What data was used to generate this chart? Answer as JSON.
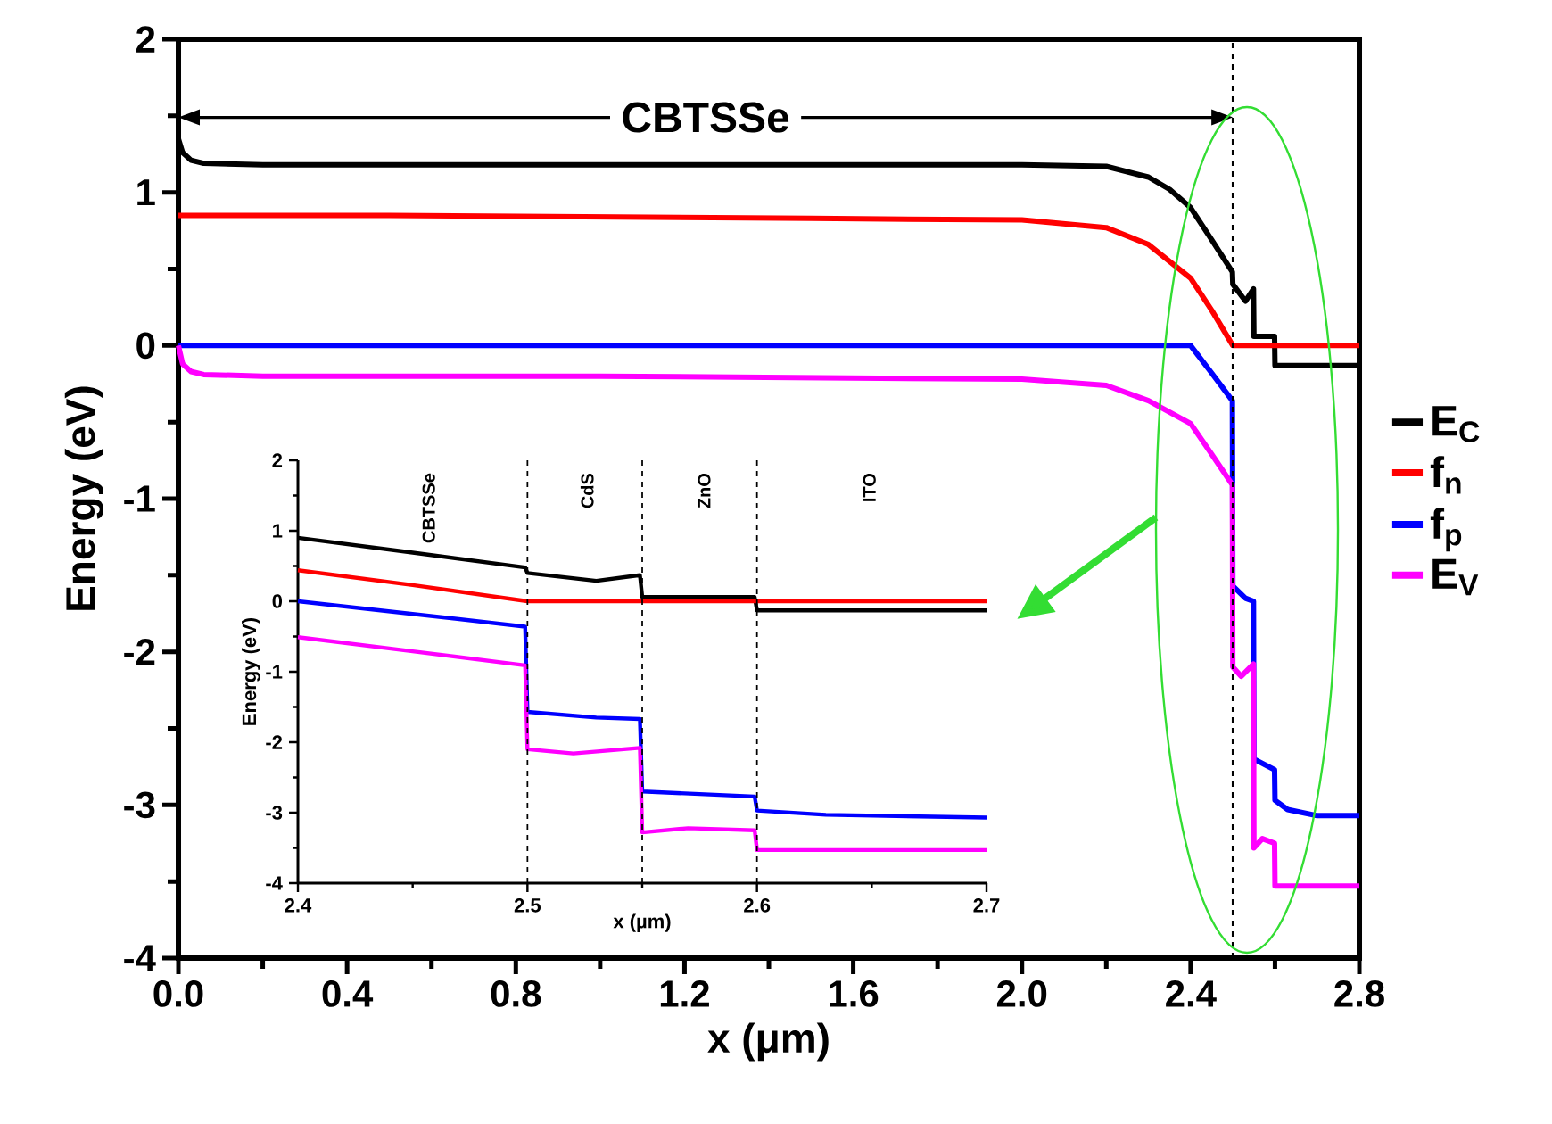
{
  "chart_data": [
    {
      "type": "line",
      "xlabel": "x (μm)",
      "ylabel": "Energy (eV)",
      "xlim": [
        0,
        2.8
      ],
      "ylim": [
        -4,
        2
      ],
      "xticks": [
        {
          "value": 0,
          "label": "0.0"
        },
        0.4,
        0.8,
        1.2,
        1.6,
        {
          "value": 2,
          "label": "2.0"
        },
        2.4,
        2.8
      ],
      "yticks": [
        -4,
        -3,
        -2,
        -1,
        0,
        1,
        2
      ],
      "legend": "right",
      "marker": "none",
      "line_style": "solid",
      "ref_lines": [
        {
          "axis": "x",
          "value": 2.5,
          "line_style": "dashed",
          "color": "#000000"
        }
      ],
      "annotations": [
        "CBTSSe"
      ],
      "series": [
        {
          "name": "E$_{C}$",
          "color": "#000000",
          "x": [
            0,
            0.01,
            0.03,
            0.06,
            0.2,
            1.0,
            2.0,
            2.2,
            2.3,
            2.35,
            2.4,
            2.45,
            2.499,
            2.5,
            2.53,
            2.549,
            2.55,
            2.599,
            2.6,
            2.8
          ],
          "values": [
            1.35,
            1.26,
            1.21,
            1.19,
            1.18,
            1.18,
            1.18,
            1.17,
            1.1,
            1.02,
            0.9,
            0.69,
            0.48,
            0.4,
            0.29,
            0.37,
            0.06,
            0.06,
            -0.13,
            -0.13
          ]
        },
        {
          "name": "f$_{n}$",
          "color": "#ff0000",
          "x": [
            0,
            0.5,
            1.0,
            1.5,
            2.0,
            2.2,
            2.3,
            2.4,
            2.45,
            2.5,
            2.8
          ],
          "values": [
            0.85,
            0.85,
            0.84,
            0.83,
            0.82,
            0.77,
            0.66,
            0.44,
            0.23,
            0.0,
            0.0
          ]
        },
        {
          "name": "f$_{p}$",
          "color": "#0000ff",
          "x": [
            0,
            2.35,
            2.4,
            2.45,
            2.499,
            2.5,
            2.53,
            2.549,
            2.55,
            2.599,
            2.6,
            2.63,
            2.7,
            2.8
          ],
          "values": [
            0,
            0,
            0,
            -0.18,
            -0.36,
            -1.57,
            -1.65,
            -1.67,
            -2.7,
            -2.77,
            -2.97,
            -3.03,
            -3.07,
            -3.07
          ]
        },
        {
          "name": "E$_{V}$",
          "color": "#ff00ff",
          "x": [
            0,
            0.01,
            0.03,
            0.06,
            0.2,
            1.0,
            2.0,
            2.2,
            2.3,
            2.4,
            2.45,
            2.499,
            2.5,
            2.52,
            2.549,
            2.55,
            2.57,
            2.599,
            2.6,
            2.8
          ],
          "values": [
            0,
            -0.12,
            -0.17,
            -0.19,
            -0.2,
            -0.2,
            -0.22,
            -0.26,
            -0.36,
            -0.51,
            -0.71,
            -0.91,
            -2.1,
            -2.16,
            -2.08,
            -3.28,
            -3.22,
            -3.25,
            -3.53,
            -3.53
          ]
        }
      ]
    },
    {
      "type": "line",
      "xlabel": "x (µm)",
      "ylabel": "Energy (eV)",
      "xlim": [
        2.4,
        2.7
      ],
      "ylim": [
        -4,
        2
      ],
      "xticks": [
        2.4,
        2.5,
        2.6,
        2.7
      ],
      "yticks": [
        -4,
        -3,
        -2,
        -1,
        0,
        1,
        2
      ],
      "marker": "none",
      "line_style": "solid",
      "ref_lines": [
        {
          "axis": "x",
          "value": 2.5,
          "line_style": "dashed",
          "color": "#000000"
        },
        {
          "axis": "x",
          "value": 2.55,
          "line_style": "dashed",
          "color": "#000000"
        },
        {
          "axis": "x",
          "value": 2.6,
          "line_style": "dashed",
          "color": "#000000"
        }
      ],
      "annotations": [
        "CBTSSe",
        "CdS",
        "ZnO",
        "ITO"
      ],
      "series": [
        {
          "color": "#000000",
          "x": [
            2.4,
            2.45,
            2.499,
            2.5,
            2.53,
            2.549,
            2.55,
            2.599,
            2.6,
            2.7
          ],
          "values": [
            0.9,
            0.69,
            0.48,
            0.4,
            0.29,
            0.37,
            0.06,
            0.06,
            -0.13,
            -0.13
          ]
        },
        {
          "color": "#ff0000",
          "x": [
            2.4,
            2.45,
            2.5,
            2.7
          ],
          "values": [
            0.44,
            0.23,
            0.0,
            0.0
          ]
        },
        {
          "color": "#0000ff",
          "x": [
            2.4,
            2.45,
            2.499,
            2.5,
            2.53,
            2.549,
            2.55,
            2.599,
            2.6,
            2.63,
            2.7
          ],
          "values": [
            0,
            -0.18,
            -0.36,
            -1.57,
            -1.65,
            -1.67,
            -2.7,
            -2.77,
            -2.97,
            -3.03,
            -3.07
          ]
        },
        {
          "color": "#ff00ff",
          "x": [
            2.4,
            2.45,
            2.499,
            2.5,
            2.52,
            2.549,
            2.55,
            2.57,
            2.599,
            2.6,
            2.7
          ],
          "values": [
            -0.51,
            -0.71,
            -0.91,
            -2.1,
            -2.16,
            -2.08,
            -3.28,
            -3.22,
            -3.25,
            -3.53,
            -3.53
          ]
        }
      ]
    }
  ]
}
